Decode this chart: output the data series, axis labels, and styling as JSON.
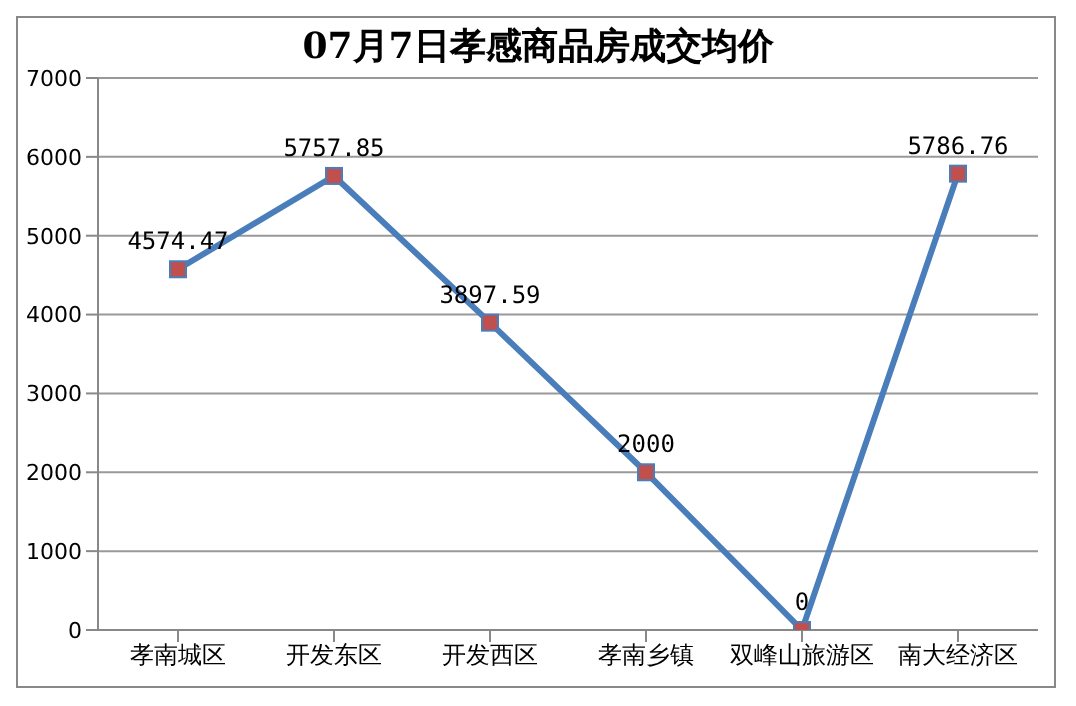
{
  "chart_data": {
    "type": "line",
    "title": "07月7日孝感商品房成交均价",
    "categories": [
      "孝南城区",
      "开发东区",
      "开发西区",
      "孝南乡镇",
      "双峰山旅游区",
      "南大经济区"
    ],
    "series": [
      {
        "color": "#4a7ebb",
        "values": [
          4574.47,
          5757.85,
          3897.59,
          2000,
          0,
          5786.76
        ]
      }
    ],
    "ylim": [
      0,
      7000
    ],
    "yticks": [
      0,
      1000,
      2000,
      3000,
      4000,
      5000,
      6000,
      7000
    ],
    "grid": "y",
    "marker": "square",
    "line_style": "solid",
    "data_labels": true,
    "legend": false
  }
}
